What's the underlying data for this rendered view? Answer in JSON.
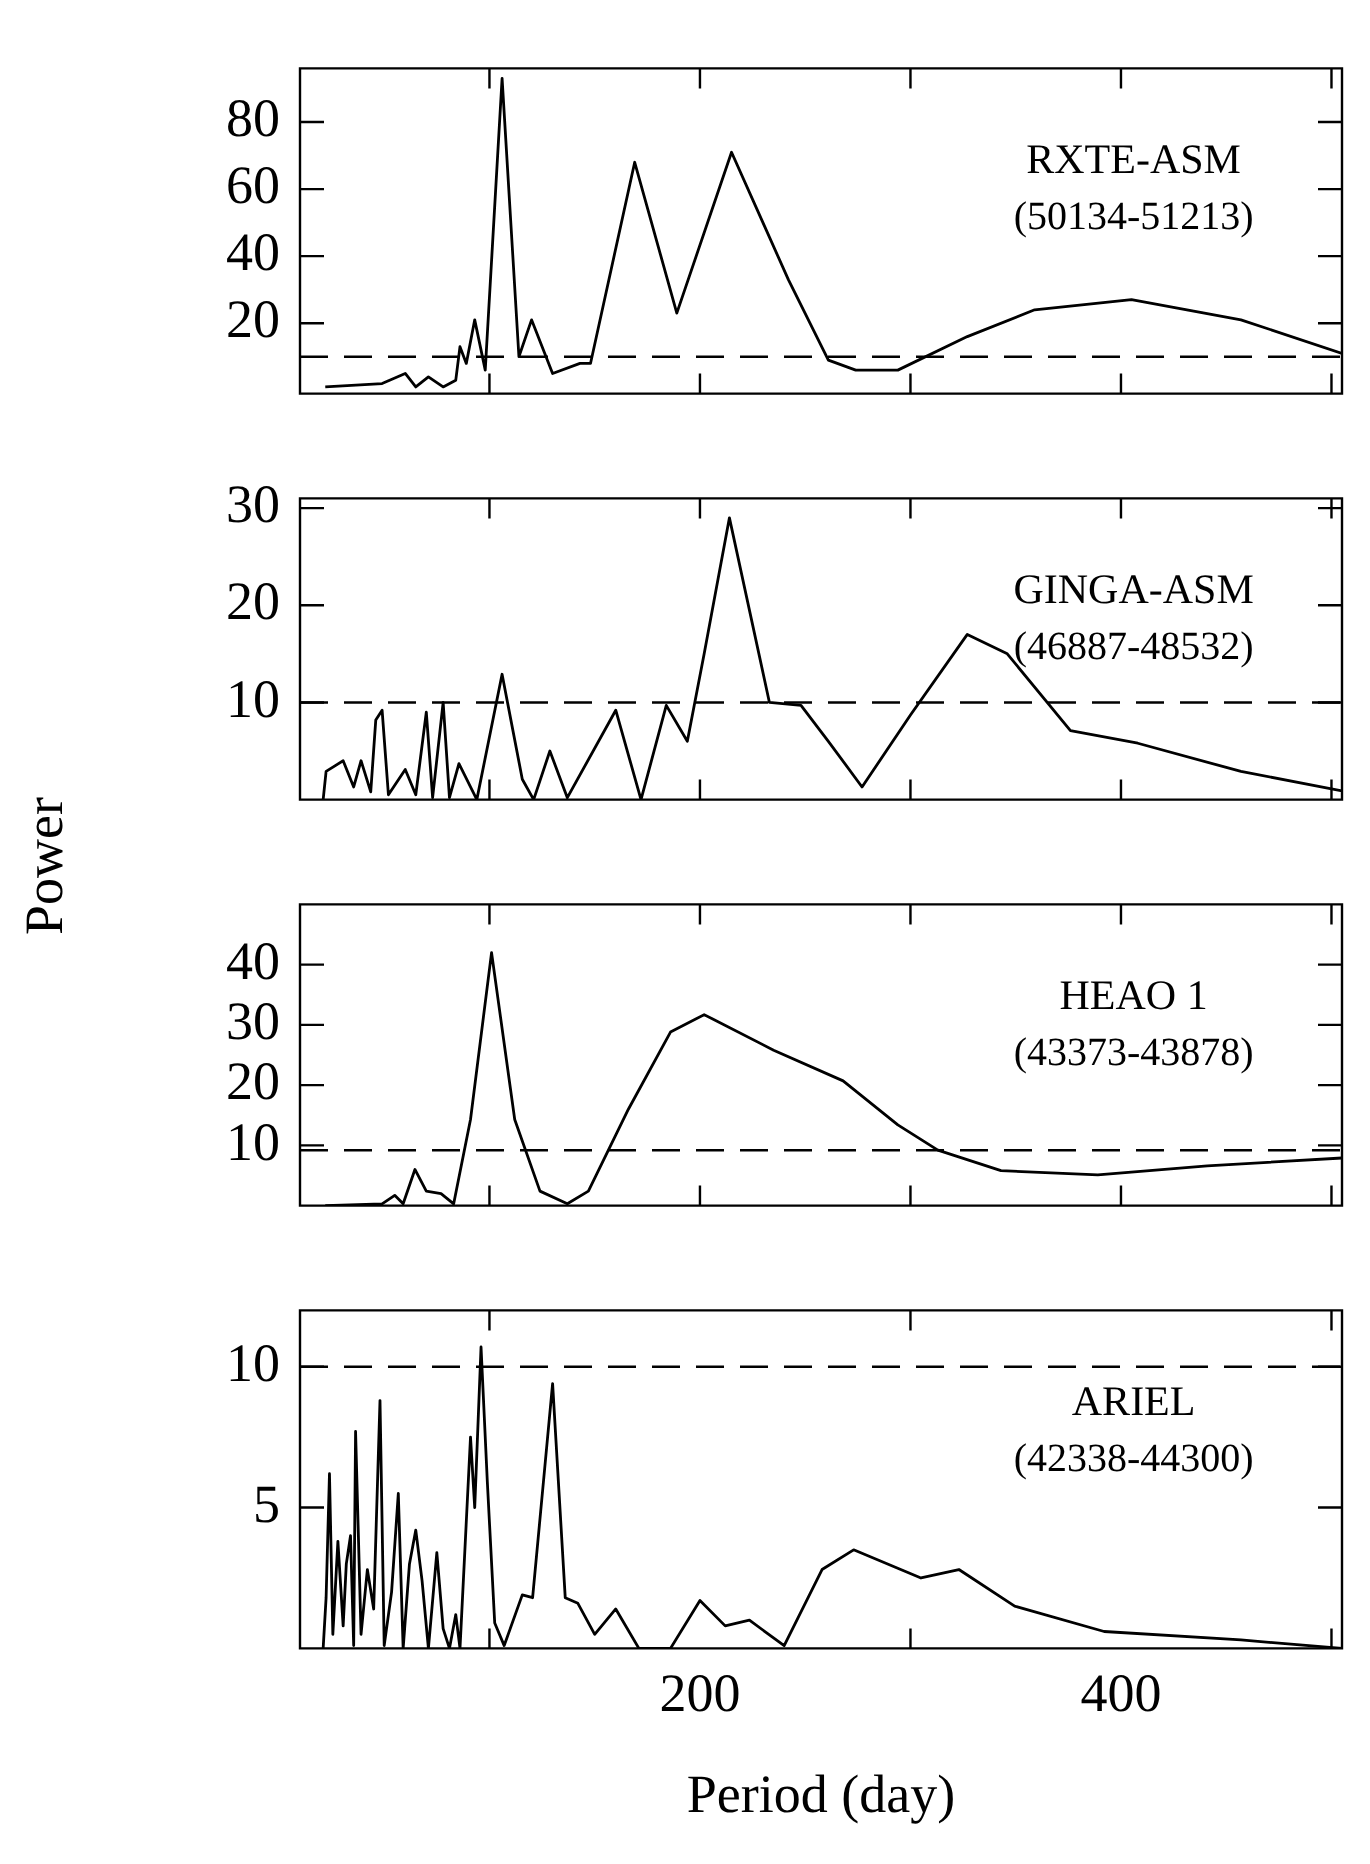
{
  "chart_data": [
    {
      "type": "line",
      "title": "RXTE-ASM",
      "subtitle": "(50134-51213)",
      "xlim": [
        10,
        505
      ],
      "xticks": [
        {
          "value": 100,
          "label": null
        },
        {
          "value": 200,
          "label": null
        },
        {
          "value": 300,
          "label": null
        },
        {
          "value": 400,
          "label": null
        },
        {
          "value": 500,
          "label": null
        }
      ],
      "ylim": [
        -1,
        96
      ],
      "yticks": [
        20,
        40,
        60,
        80
      ],
      "tick_labels": "y",
      "ref_lines": [
        {
          "axis": "y",
          "value": 10,
          "line_style": "dashed"
        }
      ],
      "series": [
        {
          "color": "#000000",
          "x": [
            22,
            49,
            60,
            65,
            71,
            78,
            84,
            86,
            89,
            93,
            98,
            106,
            114,
            120,
            130,
            143,
            148,
            169,
            189,
            215,
            242,
            261,
            274,
            294,
            327,
            359,
            405,
            457,
            505
          ],
          "values": [
            1,
            2,
            5,
            1,
            4,
            1,
            3,
            13,
            8,
            21,
            6,
            93,
            10,
            21,
            5,
            8,
            8,
            68,
            23,
            71,
            33,
            9,
            6,
            6,
            16,
            24,
            27,
            21,
            11
          ]
        }
      ]
    },
    {
      "type": "line",
      "title": "GINGA-ASM",
      "subtitle": "(46887-48532)",
      "ylabel": "Power",
      "xlim": [
        10,
        505
      ],
      "xticks": [
        {
          "value": 100,
          "label": null
        },
        {
          "value": 200,
          "label": null
        },
        {
          "value": 300,
          "label": null
        },
        {
          "value": 400,
          "label": null
        },
        {
          "value": 500,
          "label": null
        }
      ],
      "ylim": [
        0,
        31
      ],
      "yticks": [
        10,
        20,
        30
      ],
      "tick_labels": "y",
      "ref_lines": [
        {
          "axis": "y",
          "value": 10,
          "line_style": "dashed"
        }
      ],
      "series": [
        {
          "color": "#000000",
          "x": [
            21,
            22.4,
            30.5,
            35.5,
            39,
            43.6,
            46,
            49,
            52,
            60,
            65,
            70,
            73,
            78,
            81,
            85.5,
            94,
            106,
            115.6,
            121,
            128.7,
            137,
            160,
            172,
            184,
            194,
            202,
            214,
            233,
            248,
            261,
            277,
            300,
            327,
            346,
            376,
            408,
            457,
            505
          ],
          "values": [
            0,
            2.9,
            4,
            1.3,
            4,
            0.8,
            8.2,
            9.2,
            0.5,
            3.1,
            0.5,
            9,
            0.2,
            10,
            0.2,
            3.7,
            0,
            12.9,
            2.1,
            0,
            5,
            0.2,
            9.2,
            0,
            9.7,
            6,
            15,
            29,
            10,
            9.7,
            6,
            1.3,
            8.7,
            17,
            15,
            7.1,
            5.8,
            2.9,
            0.9
          ]
        }
      ]
    },
    {
      "type": "line",
      "title": "HEAO 1",
      "subtitle": "(43373-43878)",
      "xlim": [
        10,
        505
      ],
      "xticks": [
        {
          "value": 100,
          "label": null
        },
        {
          "value": 200,
          "label": null
        },
        {
          "value": 300,
          "label": null
        },
        {
          "value": 400,
          "label": null
        },
        {
          "value": 500,
          "label": null
        }
      ],
      "ylim": [
        0,
        50
      ],
      "yticks": [
        10,
        20,
        30,
        40
      ],
      "tick_labels": "y",
      "ref_lines": [
        {
          "axis": "y",
          "value": 9.2,
          "line_style": "dashed"
        }
      ],
      "series": [
        {
          "color": "#000000",
          "x": [
            22,
            49,
            55,
            59,
            64.6,
            70,
            77,
            83,
            91,
            101,
            112,
            124,
            137,
            147,
            166,
            186,
            202,
            235,
            268,
            294,
            313,
            343,
            389,
            441,
            505
          ],
          "values": [
            0,
            0.3,
            1.7,
            0.3,
            6,
            2.4,
            2,
            0.3,
            14.3,
            42,
            14.3,
            2.4,
            0.3,
            2.4,
            16,
            28.8,
            31.7,
            25.8,
            20.7,
            13.4,
            9.2,
            5.8,
            5.1,
            6.6,
            7.9
          ]
        }
      ]
    },
    {
      "type": "line",
      "title": "ARIEL",
      "subtitle": "(42338-44300)",
      "xlabel": "Period (day)",
      "xlim": [
        10,
        505
      ],
      "xticks": [
        {
          "value": 100,
          "label": null
        },
        200,
        {
          "value": 300,
          "label": null
        },
        400,
        {
          "value": 500,
          "label": null
        }
      ],
      "ylim": [
        0,
        12
      ],
      "yticks": [
        5,
        10
      ],
      "ref_lines": [
        {
          "axis": "y",
          "value": 10,
          "line_style": "dashed"
        }
      ],
      "series": [
        {
          "color": "#000000",
          "x": [
            21,
            22.4,
            24,
            25.6,
            28,
            30.5,
            32,
            34,
            35.5,
            36.4,
            39,
            42,
            45,
            48,
            50,
            53.5,
            56.7,
            59,
            62,
            65,
            68,
            71,
            75,
            78,
            81,
            84,
            86,
            91,
            93,
            96,
            99,
            102.5,
            107,
            115.6,
            120.5,
            130,
            136,
            142,
            150,
            160,
            171,
            186,
            200,
            212,
            223.5,
            240,
            258,
            273,
            305,
            323,
            349.5,
            392,
            457,
            505
          ],
          "values": [
            0,
            1.8,
            6.2,
            0.5,
            3.8,
            0.8,
            3,
            4,
            0.1,
            7.7,
            0.5,
            2.8,
            1.4,
            8.8,
            0.1,
            2,
            5.5,
            0,
            3,
            4.2,
            2.4,
            0,
            3.4,
            0.7,
            0,
            1.2,
            0,
            7.5,
            5,
            10.7,
            5.9,
            0.9,
            0.1,
            1.9,
            1.8,
            9.4,
            1.8,
            1.6,
            0.5,
            1.4,
            0,
            0,
            1.7,
            0.8,
            1,
            0.1,
            2.8,
            3.5,
            2.5,
            2.8,
            1.5,
            0.6,
            0.3,
            0
          ]
        }
      ]
    }
  ]
}
